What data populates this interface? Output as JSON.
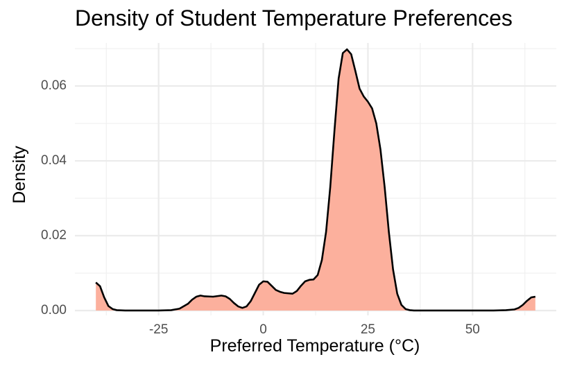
{
  "chart_data": {
    "type": "area",
    "title": "Density of Student Temperature Preferences",
    "xlabel": "Preferred Temperature (°C)",
    "ylabel": "Density",
    "xlim": [
      -45,
      70
    ],
    "ylim": [
      -0.0013,
      0.0715
    ],
    "x_ticks": [
      -25,
      0,
      25,
      50
    ],
    "x_tick_labels": [
      "-25",
      "0",
      "25",
      "50"
    ],
    "y_ticks": [
      0,
      0.02,
      0.04,
      0.06
    ],
    "y_tick_labels": [
      "0.00",
      "0.02",
      "0.04",
      "0.06"
    ],
    "grid": true,
    "fill_color": "#fcb09d",
    "line_color": "#000000",
    "series": [
      {
        "x": [
          -40,
          -39,
          -38,
          -37,
          -36,
          -35,
          -33,
          -30,
          -25,
          -22,
          -20,
          -18,
          -17,
          -16,
          -15,
          -14,
          -12,
          -10,
          -9,
          -8,
          -7,
          -6,
          -5,
          -4,
          -3,
          -2,
          -1,
          0,
          1,
          2,
          3,
          4,
          5,
          7,
          8,
          9,
          10,
          11,
          12,
          13,
          14,
          15,
          16,
          17,
          18,
          19,
          20,
          21,
          22,
          23,
          24,
          25,
          26,
          27,
          28,
          29,
          30,
          31,
          32,
          33,
          34,
          35,
          36,
          38,
          40,
          45,
          50,
          55,
          58,
          60,
          61,
          62,
          63,
          64,
          65
        ],
        "y": [
          0.0075,
          0.0065,
          0.0035,
          0.0012,
          0.0004,
          0.0001,
          0,
          0,
          0,
          0.0001,
          0.0005,
          0.0018,
          0.0029,
          0.0037,
          0.004,
          0.0038,
          0.0037,
          0.004,
          0.0038,
          0.0031,
          0.002,
          0.0011,
          0.0007,
          0.0011,
          0.0025,
          0.0047,
          0.0069,
          0.0078,
          0.0077,
          0.0066,
          0.0055,
          0.005,
          0.0047,
          0.0045,
          0.0052,
          0.0066,
          0.0078,
          0.0082,
          0.0083,
          0.0095,
          0.0135,
          0.021,
          0.033,
          0.048,
          0.062,
          0.0688,
          0.0698,
          0.0685,
          0.064,
          0.0593,
          0.0572,
          0.0558,
          0.054,
          0.05,
          0.043,
          0.033,
          0.021,
          0.011,
          0.0045,
          0.0015,
          0.0004,
          0.0001,
          0,
          0,
          0,
          0,
          0,
          0,
          0.0001,
          0.0003,
          0.0007,
          0.0015,
          0.0026,
          0.0035,
          0.0037
        ]
      }
    ]
  }
}
